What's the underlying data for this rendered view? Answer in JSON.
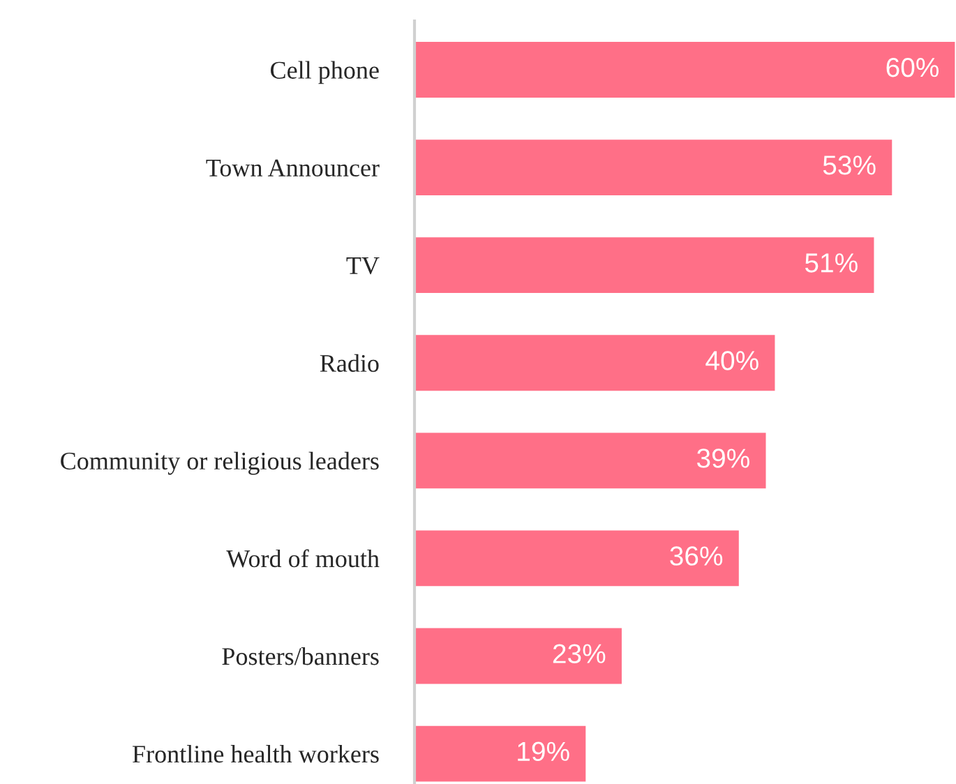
{
  "chart_data": {
    "type": "bar",
    "orientation": "horizontal",
    "categories": [
      "Cell phone",
      "Town Announcer",
      "TV",
      "Radio",
      "Community or religious leaders",
      "Word of mouth",
      "Posters/banners",
      "Frontline health workers"
    ],
    "values": [
      60,
      53,
      51,
      40,
      39,
      36,
      23,
      19
    ],
    "value_labels": [
      "60%",
      "53%",
      "51%",
      "40%",
      "39%",
      "36%",
      "23%",
      "19%"
    ],
    "color": "#ff6f87",
    "grid": false,
    "legend": false,
    "tick_labels": "y"
  }
}
